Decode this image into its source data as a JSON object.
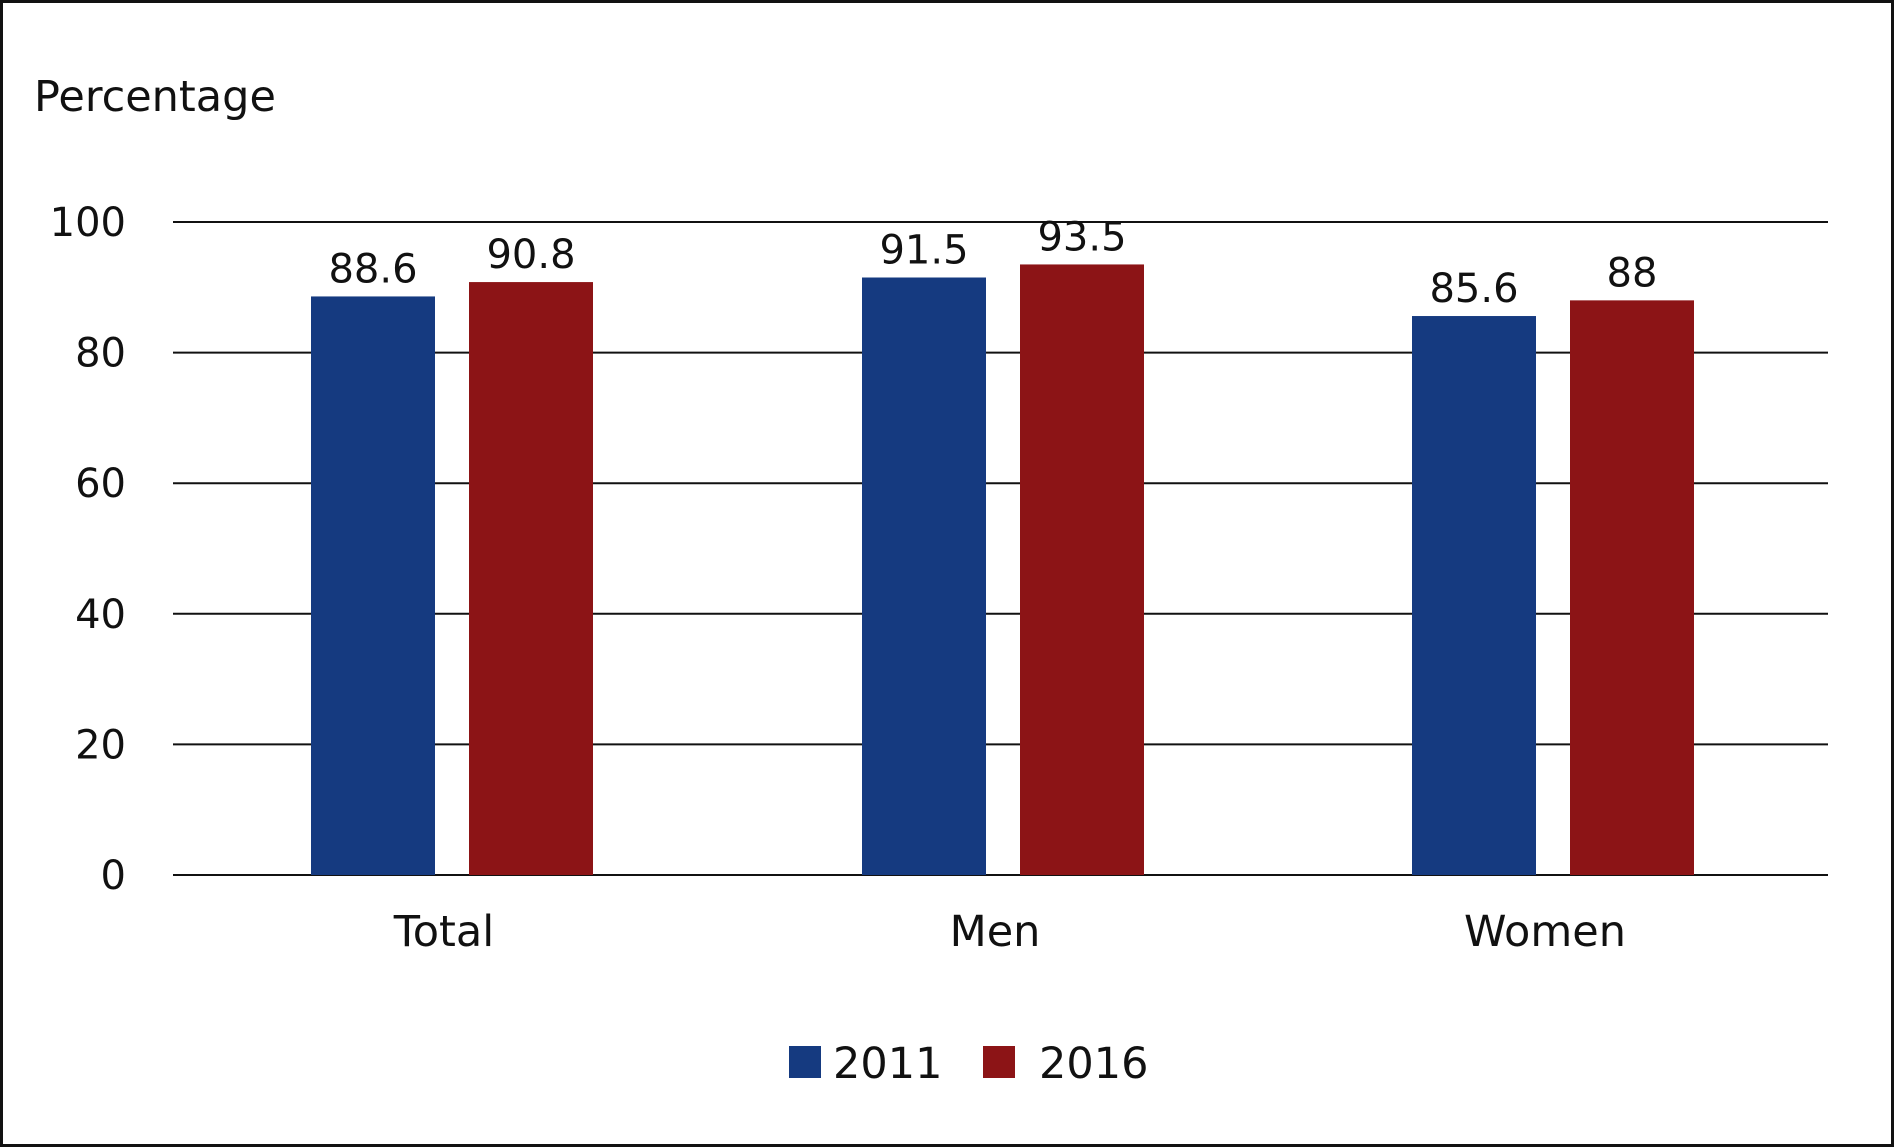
{
  "chart_data": {
    "type": "bar",
    "title": "",
    "xlabel": "",
    "ylabel": "Percentage",
    "ylim": [
      0,
      100
    ],
    "yticks": [
      0,
      20,
      40,
      60,
      80,
      100
    ],
    "grid": true,
    "legend_position": "bottom-center",
    "categories": [
      "Total",
      "Men",
      "Women"
    ],
    "series": [
      {
        "name": "2011",
        "color": "#153a80",
        "values": [
          88.6,
          91.5,
          85.6
        ],
        "labels": [
          "88.6",
          "91.5",
          "85.6"
        ]
      },
      {
        "name": "2016",
        "color": "#8c1416",
        "values": [
          90.8,
          93.5,
          88
        ],
        "labels": [
          "90.8",
          "93.5",
          "88"
        ]
      }
    ]
  }
}
